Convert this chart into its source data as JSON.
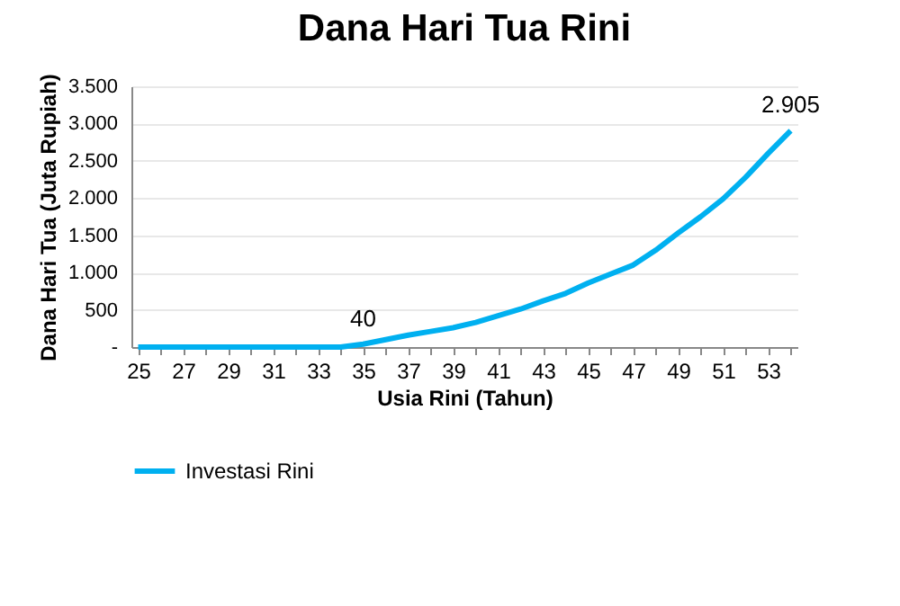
{
  "chart_data": {
    "type": "line",
    "title": "Dana Hari Tua Rini",
    "xlabel": "Usia Rini (Tahun)",
    "ylabel": "Dana Hari Tua (Juta Rupiah)",
    "categories": [
      "25",
      null,
      "27",
      null,
      "29",
      null,
      "31",
      null,
      "33",
      null,
      "35",
      null,
      "37",
      null,
      "39",
      null,
      "41",
      null,
      "43",
      null,
      "45",
      null,
      "47",
      null,
      "49",
      null,
      "51",
      null,
      "53",
      null
    ],
    "series": [
      {
        "name": "Investasi Rini",
        "color": "#00b0f0",
        "values": [
          0,
          0,
          0,
          0,
          0,
          0,
          0,
          0,
          0,
          0,
          40,
          100,
          160,
          210,
          260,
          330,
          420,
          510,
          620,
          720,
          860,
          980,
          1100,
          1300,
          1530,
          1750,
          1990,
          2280,
          2600,
          2905
        ],
        "value_labels": [
          null,
          null,
          null,
          null,
          null,
          null,
          null,
          null,
          null,
          null,
          "40",
          null,
          null,
          null,
          null,
          null,
          null,
          null,
          null,
          null,
          null,
          null,
          null,
          null,
          null,
          null,
          null,
          null,
          null,
          "2.905"
        ]
      }
    ],
    "ylim": [
      0,
      3500
    ],
    "yticks": [
      {
        "value": 0,
        "label": "-"
      },
      {
        "value": 500,
        "label": "500"
      },
      {
        "value": 1000,
        "label": "1.000"
      },
      {
        "value": 1500,
        "label": "1.500"
      },
      {
        "value": 2000,
        "label": "2.000"
      },
      {
        "value": 2500,
        "label": "2.500"
      },
      {
        "value": 3000,
        "label": "3.000"
      },
      {
        "value": 3500,
        "label": "3.500"
      }
    ],
    "grid": "y",
    "legend": "bottom",
    "marker": "none",
    "line_style": "solid"
  }
}
